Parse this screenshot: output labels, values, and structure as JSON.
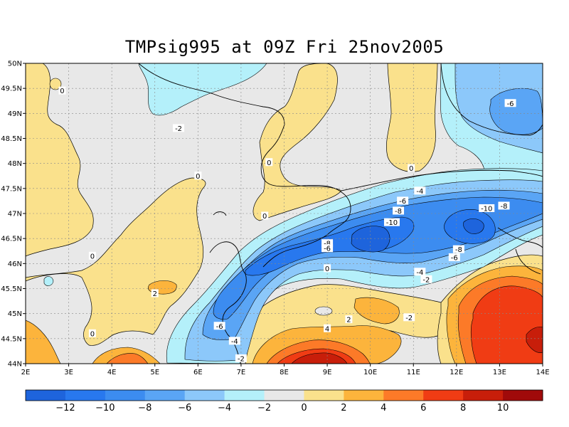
{
  "title": "TMPsig995 at 09Z Fri 25nov2005",
  "chart_data": {
    "type": "heatmap",
    "title": "TMPsig995 at 09Z Fri 25nov2005",
    "x_ticks": [
      "2E",
      "3E",
      "4E",
      "5E",
      "6E",
      "7E",
      "8E",
      "9E",
      "10E",
      "11E",
      "12E",
      "13E",
      "14E"
    ],
    "y_ticks": [
      "44N",
      "44.5N",
      "45N",
      "45.5N",
      "46N",
      "46.5N",
      "47N",
      "47.5N",
      "48N",
      "48.5N",
      "49N",
      "49.5N",
      "50N"
    ],
    "xlim": [
      2,
      14
    ],
    "ylim": [
      44,
      50
    ],
    "grid": true,
    "colorbar": {
      "levels": [
        -12,
        -10,
        -8,
        -6,
        -4,
        -2,
        0,
        2,
        4,
        6,
        8,
        10
      ],
      "labels": [
        "-12",
        "-10",
        "-8",
        "-6",
        "-4",
        "-2",
        "0",
        "2",
        "4",
        "6",
        "8",
        "10"
      ],
      "colors": [
        "#1e64dc",
        "#2878ee",
        "#3c8cf0",
        "#5aa5f5",
        "#8cc8fa",
        "#b4f0fa",
        "#e8e8e8",
        "#fae18c",
        "#fcb43c",
        "#fc7a28",
        "#f03c14",
        "#c81e0a",
        "#a00a0a"
      ]
    },
    "contour_labels": [
      {
        "text": "0",
        "lon": 2.85,
        "lat": 49.45
      },
      {
        "text": "-2",
        "lon": 5.55,
        "lat": 48.7
      },
      {
        "text": "0",
        "lon": 7.65,
        "lat": 48.02
      },
      {
        "text": "0",
        "lon": 6.0,
        "lat": 47.75
      },
      {
        "text": "0",
        "lon": 10.95,
        "lat": 47.9
      },
      {
        "text": "-4",
        "lon": 11.15,
        "lat": 47.45
      },
      {
        "text": "-6",
        "lon": 10.75,
        "lat": 47.25
      },
      {
        "text": "-8",
        "lon": 10.65,
        "lat": 47.05
      },
      {
        "text": "-10",
        "lon": 10.5,
        "lat": 46.82
      },
      {
        "text": "-10",
        "lon": 12.7,
        "lat": 47.1
      },
      {
        "text": "-8",
        "lon": 13.1,
        "lat": 47.15
      },
      {
        "text": "-6",
        "lon": 13.25,
        "lat": 49.2
      },
      {
        "text": "0",
        "lon": 7.55,
        "lat": 46.95
      },
      {
        "text": "-8",
        "lon": 9.0,
        "lat": 46.4
      },
      {
        "text": "-6",
        "lon": 9.0,
        "lat": 46.3
      },
      {
        "text": "-8",
        "lon": 12.05,
        "lat": 46.28
      },
      {
        "text": "-6",
        "lon": 11.95,
        "lat": 46.12
      },
      {
        "text": "0",
        "lon": 3.55,
        "lat": 46.15
      },
      {
        "text": "0",
        "lon": 9.0,
        "lat": 45.9
      },
      {
        "text": "-4",
        "lon": 11.15,
        "lat": 45.83
      },
      {
        "text": "-2",
        "lon": 11.3,
        "lat": 45.68
      },
      {
        "text": "2",
        "lon": 5.0,
        "lat": 45.4
      },
      {
        "text": "-2",
        "lon": 10.9,
        "lat": 44.92
      },
      {
        "text": "2",
        "lon": 9.5,
        "lat": 44.88
      },
      {
        "text": "-6",
        "lon": 6.5,
        "lat": 44.75
      },
      {
        "text": "4",
        "lon": 9.0,
        "lat": 44.7
      },
      {
        "text": "0",
        "lon": 3.55,
        "lat": 44.6
      },
      {
        "text": "-4",
        "lon": 6.85,
        "lat": 44.45
      },
      {
        "text": "-2",
        "lon": 7.0,
        "lat": 44.1
      }
    ]
  }
}
